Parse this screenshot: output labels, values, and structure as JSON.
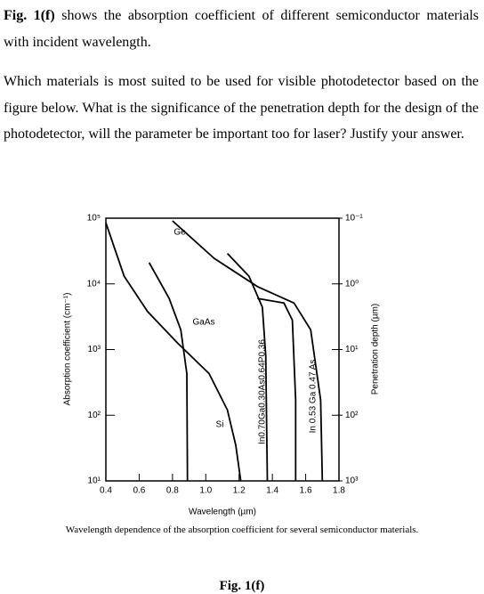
{
  "question": {
    "intro_bold": "Fig. 1(f)",
    "intro_text": " shows the absorption coefficient of different semiconductor materials with incident wavelength.",
    "body": "Which materials is most suited to be used for visible photodetector based on the figure below. What is the significance of the penetration depth for the design of the photodetector, will the parameter be important too for laser? Justify your answer."
  },
  "chart_data": {
    "type": "line",
    "x_label": "Wavelength (µm)",
    "y_label": "Absorption coefficient (cm⁻¹)",
    "y2_label": "Penetration depth (µm)",
    "log_scale": true,
    "grid": false,
    "color": "#000000",
    "xlim": [
      0.4,
      1.8
    ],
    "xticks": [
      0.4,
      0.6,
      0.8,
      {
        "value": 1,
        "label": "1.0"
      },
      1.2,
      1.4,
      1.6,
      1.8
    ],
    "ylim": [
      10,
      100000
    ],
    "yticks": [
      {
        "value": 10,
        "label": "10¹"
      },
      {
        "value": 100,
        "label": "10²"
      },
      {
        "value": 1000,
        "label": "10³"
      },
      {
        "value": 10000,
        "label": "10⁴"
      },
      {
        "value": 100000,
        "label": "10⁵"
      }
    ],
    "y2lim": [
      1000,
      0.1
    ],
    "y2ticks": [
      {
        "value": 0.1,
        "label": "10⁻¹"
      },
      {
        "value": 1,
        "label": "10⁰"
      },
      {
        "value": 10,
        "label": "10¹"
      },
      {
        "value": 100,
        "label": "10²"
      },
      {
        "value": 1000,
        "label": "10³"
      }
    ],
    "series": [
      {
        "name": "Ge",
        "x": [
          0.8,
          1.05,
          1.31,
          1.53,
          1.63,
          1.69,
          1.7
        ],
        "values": [
          91000,
          24500,
          9100,
          5100,
          2000,
          170,
          10
        ]
      },
      {
        "name": "GaAs",
        "x": [
          0.66,
          0.78,
          0.85,
          0.886,
          0.89
        ],
        "values": [
          21000,
          6000,
          2000,
          430,
          10
        ]
      },
      {
        "name": "Si",
        "x": [
          0.4,
          0.51,
          0.65,
          0.83,
          1.02,
          1.13,
          1.18,
          1.21
        ],
        "values": [
          85000,
          13000,
          3800,
          1260,
          430,
          120,
          35,
          10
        ]
      },
      {
        "name": "In0.70Ga0.30As0.64P0.36",
        "x": [
          1.13,
          1.26,
          1.34,
          1.36,
          1.37
        ],
        "values": [
          29000,
          13000,
          4400,
          800,
          10
        ]
      },
      {
        "name": "In 0.53 Ga 0.47 As",
        "x": [
          1.31,
          1.47,
          1.52,
          1.54,
          1.54
        ],
        "values": [
          6000,
          5100,
          2800,
          170,
          10
        ]
      }
    ]
  },
  "caption": "Wavelength dependence of the absorption coefficient for several semiconductor materials.",
  "figure_label": "Fig. 1(f)"
}
